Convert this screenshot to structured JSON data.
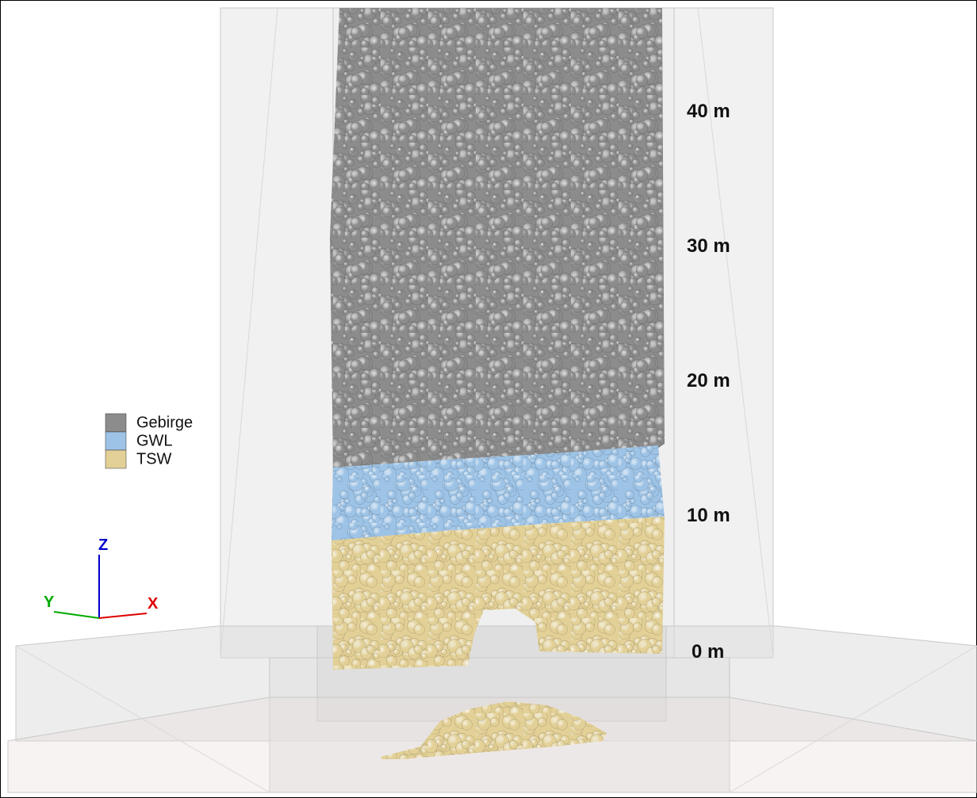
{
  "legend": {
    "items": [
      {
        "label": "Gebirge",
        "color": "#8c8c8c"
      },
      {
        "label": "GWL",
        "color": "#9dc3e6"
      },
      {
        "label": "TSW",
        "color": "#e2d096"
      }
    ]
  },
  "depth_labels": [
    "40 m",
    "30 m",
    "20 m",
    "10 m",
    "0 m"
  ],
  "axes": {
    "x": "X",
    "y": "Y",
    "z": "Z"
  }
}
